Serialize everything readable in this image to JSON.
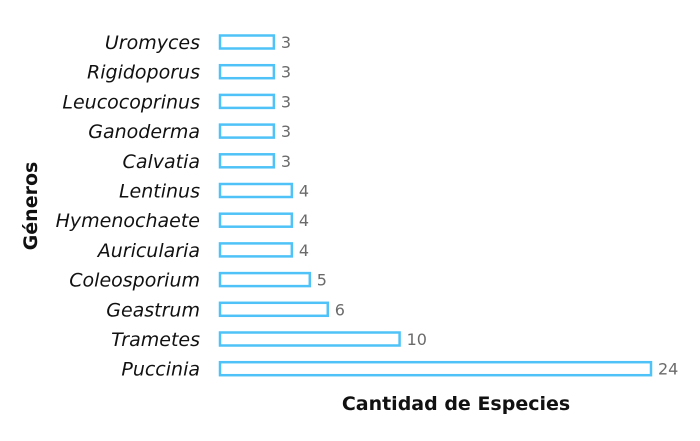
{
  "chart_data": {
    "type": "bar",
    "orientation": "horizontal",
    "categories": [
      "Uromyces",
      "Rigidoporus",
      "Leucocoprinus",
      "Ganoderma",
      "Calvatia",
      "Lentinus",
      "Hymenochaete",
      "Auricularia",
      "Coleosporium",
      "Geastrum",
      "Trametes",
      "Puccinia"
    ],
    "values": [
      3,
      3,
      3,
      3,
      3,
      4,
      4,
      4,
      5,
      6,
      10,
      24
    ],
    "title": "",
    "xlabel": "Cantidad de Especies",
    "ylabel": "Géneros",
    "xlim": [
      0,
      24
    ],
    "grid": false,
    "legend": "none",
    "data_labels": true
  },
  "colors": {
    "bar_stroke": "#4fc3f7",
    "bar_fill": "#ffffff",
    "value_label": "#6b6b6b",
    "text": "#111111"
  }
}
